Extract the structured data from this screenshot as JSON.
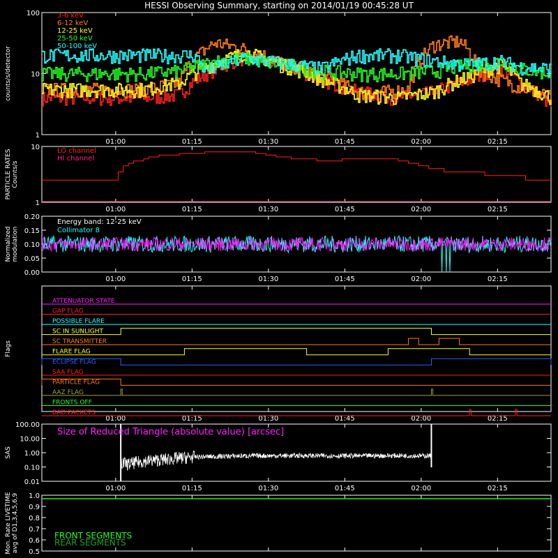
{
  "title": "HESSI Observing Summary, starting on 2014/01/19 00:45:28 UT",
  "time_ticks": [
    "01:00",
    "01:15",
    "01:30",
    "01:45",
    "02:00",
    "02:15"
  ],
  "colors": {
    "background": "#000000",
    "axes": "#ffffff",
    "red": "#ff2020",
    "orange": "#ff7a1a",
    "yellow": "#ffff20",
    "green": "#20ff20",
    "cyan": "#20ffff",
    "magenta": "#ff20ff",
    "blue": "#3060ff",
    "olive": "#a0a040"
  },
  "chart_data": [
    {
      "id": "count-rates",
      "type": "line",
      "ylabel": "counts/s/detector",
      "scale": "log",
      "ylim": [
        1,
        100
      ],
      "ytick_labels": [
        "1",
        "10",
        "100"
      ],
      "x_range_minutes": [
        0,
        100
      ],
      "series": [
        {
          "name": "3-6 keV",
          "color": "#ff2020",
          "x": [
            0,
            10,
            20,
            27,
            34,
            40,
            47,
            55,
            62,
            70,
            77,
            84,
            90,
            94,
            100
          ],
          "y": [
            4,
            4,
            4,
            4.5,
            12,
            19,
            14,
            8,
            5,
            4,
            5,
            8,
            13,
            7,
            3
          ]
        },
        {
          "name": "6-12 keV",
          "color": "#ff7a1a",
          "x": [
            0,
            10,
            20,
            27,
            34,
            40,
            47,
            55,
            62,
            67,
            72,
            77,
            82,
            86,
            90,
            94,
            100
          ],
          "y": [
            5.5,
            5.5,
            5.5,
            7,
            32,
            25,
            15,
            9,
            5,
            5,
            5.5,
            30,
            34,
            11,
            8,
            6,
            4
          ]
        },
        {
          "name": "12-25 keV",
          "color": "#ffff20",
          "x": [
            0,
            10,
            20,
            27,
            34,
            40,
            47,
            55,
            62,
            70,
            77,
            84,
            90,
            94,
            100
          ],
          "y": [
            5.5,
            5.5,
            5.5,
            7,
            15,
            22,
            14,
            8,
            4.5,
            4,
            5,
            9,
            14,
            7,
            4
          ]
        },
        {
          "name": "25-50 keV",
          "color": "#20ff20",
          "x": [
            0,
            10,
            20,
            27,
            34,
            40,
            47,
            55,
            62,
            70,
            77,
            84,
            90,
            94,
            100
          ],
          "y": [
            10,
            10,
            10,
            11,
            16,
            18,
            14,
            11,
            10,
            10,
            11,
            14,
            16,
            12,
            10
          ]
        },
        {
          "name": "50-100 keV",
          "color": "#20ffff",
          "x": [
            0,
            10,
            20,
            27,
            30,
            32,
            40,
            47,
            55,
            62,
            65,
            70,
            77,
            84,
            90,
            94,
            100
          ],
          "y": [
            20,
            20,
            20,
            20,
            20,
            11,
            18,
            15,
            12,
            20,
            20,
            20,
            16,
            14,
            16,
            13,
            12
          ]
        }
      ]
    },
    {
      "id": "particle-rates",
      "type": "line",
      "ylabel": "PARTICLE RATES\nCounts/s",
      "scale": "log",
      "ylim": [
        1,
        10
      ],
      "ytick_labels": [
        "1",
        "10"
      ],
      "x_range_minutes": [
        0,
        100
      ],
      "series": [
        {
          "name": "LO channel",
          "color": "#ff2020",
          "x": [
            0,
            14,
            16,
            20,
            24,
            30,
            34,
            40,
            44,
            50,
            56,
            62,
            68,
            72,
            76,
            80,
            84,
            88,
            92,
            96,
            100
          ],
          "y": [
            2.5,
            2.5,
            4.5,
            6,
            7,
            7.5,
            8,
            8,
            7,
            6,
            5.5,
            6,
            6,
            5,
            4,
            3.5,
            3.5,
            3,
            3,
            2.5,
            2.5
          ]
        },
        {
          "name": "HI channel",
          "color": "#ff2080",
          "x": [
            0,
            100
          ],
          "y": [
            1,
            1
          ]
        }
      ]
    },
    {
      "id": "modulation",
      "type": "line",
      "ylabel": "Normalized\nmodulation",
      "ylim": [
        0,
        0.2
      ],
      "ytick_labels": [
        "0.00",
        "0.05",
        "0.10",
        "0.15",
        "0.20"
      ],
      "annotation": "Energy band: 12-25 keV",
      "x_range_minutes": [
        0,
        100
      ],
      "series": [
        {
          "name": "Collimator 8",
          "color": "#20ffff",
          "mean": 0.1,
          "spread": 0.03
        },
        {
          "name": "",
          "color": "#ff20ff",
          "mean": 0.1,
          "spread": 0.025
        }
      ]
    },
    {
      "id": "flags",
      "type": "line",
      "ylabel": "Flags",
      "x_range_minutes": [
        0,
        100
      ],
      "series": [
        {
          "name": "ATTENUATOR STATE",
          "color": "#ff20ff",
          "steps": []
        },
        {
          "name": "GAP FLAG",
          "color": "#ff2020",
          "steps": []
        },
        {
          "name": "POSSIBLE FLARE",
          "color": "#20ffff",
          "steps": []
        },
        {
          "name": "SC IN SUNLIGHT",
          "color": "#ffff20",
          "steps": [
            [
              15.5,
              76.5
            ]
          ]
        },
        {
          "name": "SC TRANSMITTER",
          "color": "#ff7a1a",
          "steps": [
            [
              72,
              74
            ],
            [
              78,
              82
            ]
          ]
        },
        {
          "name": "FLARE FLAG",
          "color": "#ffff20",
          "steps": [
            [
              28,
              52
            ],
            [
              68,
              84
            ]
          ]
        },
        {
          "name": "ECLIPSE FLAG",
          "color": "#3060ff",
          "steps": [
            [
              0,
              15.5
            ],
            [
              76.5,
              100
            ]
          ]
        },
        {
          "name": "SAA FLAG",
          "color": "#ff2020",
          "steps": []
        },
        {
          "name": "PARTICLE FLAG",
          "color": "#ff7a1a",
          "steps": [
            [
              0,
              15.5
            ]
          ]
        },
        {
          "name": "AAZ FLAG",
          "color": "#a0a040",
          "steps": [
            [
              15.5,
              15.8
            ],
            [
              76.5,
              76.8
            ]
          ]
        },
        {
          "name": "FRONTS OFF",
          "color": "#20ff20",
          "steps": []
        },
        {
          "name": "BAD PACKETS",
          "color": "#ff2020",
          "steps": [
            [
              84,
              84.3
            ],
            [
              93,
              93.3
            ]
          ]
        }
      ]
    },
    {
      "id": "sas",
      "type": "line",
      "ylabel": "SAS",
      "scale": "log",
      "ylim": [
        0.01,
        100
      ],
      "ytick_labels": [
        "0.01",
        "0.10",
        "1.00",
        "10.00",
        "100.00"
      ],
      "annotation": "Size of Reduced Triangle (absolute value) [arcsec]",
      "x_range_minutes": [
        0,
        100
      ],
      "series": [
        {
          "name": "",
          "color": "#ffffff",
          "x": [
            15.5,
            17,
            20,
            25,
            30,
            40,
            50,
            60,
            70,
            76.5
          ],
          "y": [
            0.2,
            0.15,
            0.25,
            0.35,
            0.5,
            0.6,
            0.62,
            0.6,
            0.62,
            0.6
          ]
        }
      ]
    },
    {
      "id": "livetime",
      "type": "line",
      "ylabel": "Mon. Rate LIVETIME\navg of D1,3,4,5,6,9",
      "ylim": [
        0.5,
        1.0
      ],
      "ytick_labels": [
        "0.5",
        "0.6",
        "0.7",
        "0.8",
        "0.9",
        "1.0"
      ],
      "x_range_minutes": [
        0,
        100
      ],
      "series": [
        {
          "name": "FRONT SEGMENTS",
          "color": "#20ff20",
          "x": [
            0,
            100
          ],
          "y": [
            0.97,
            0.97
          ]
        },
        {
          "name": "REAR SEGMENTS",
          "color": "#20a020",
          "x": [
            0,
            100
          ],
          "y": [
            0.965,
            0.965
          ]
        }
      ]
    }
  ]
}
